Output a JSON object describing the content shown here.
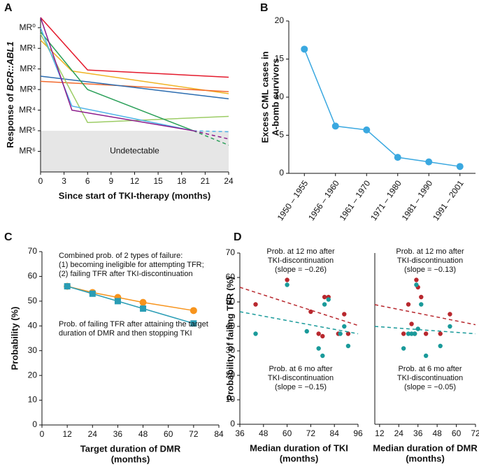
{
  "panel_labels": [
    "A",
    "B",
    "C",
    "D"
  ],
  "chart_data": [
    {
      "type": "line",
      "x_label": [
        "Since start of TKI-therapy (months)"
      ],
      "y_label_parts": [
        {
          "text": "Response of ",
          "italic": false
        },
        {
          "text": "BCR::ABL1",
          "italic": true
        }
      ],
      "xlim": [
        0,
        24
      ],
      "xticks": [
        0,
        3,
        6,
        9,
        12,
        15,
        18,
        21,
        24
      ],
      "ylim": [
        7.0,
        -0.5
      ],
      "yticks": [
        {
          "value": 0,
          "label": "MR⁰"
        },
        {
          "value": 1,
          "label": "MR¹"
        },
        {
          "value": 2,
          "label": "MR²"
        },
        {
          "value": 3,
          "label": "MR³"
        },
        {
          "value": 4,
          "label": "MR⁴"
        },
        {
          "value": 5,
          "label": "MR⁵"
        },
        {
          "value": 6,
          "label": "MR⁶"
        }
      ],
      "shade": {
        "from": 5,
        "label": "Undetectable",
        "color": "#e6e6e6"
      },
      "series": [
        {
          "color": "#e41a2c",
          "x": [
            0,
            6,
            24
          ],
          "values": [
            -0.5,
            2.05,
            2.4
          ]
        },
        {
          "color": "#f0b323",
          "x": [
            0,
            4,
            24
          ],
          "values": [
            0.6,
            2.1,
            3.2
          ]
        },
        {
          "color": "#f26a2e",
          "x": [
            0,
            24
          ],
          "values": [
            2.6,
            3.1
          ]
        },
        {
          "color": "#2b6cb0",
          "x": [
            0,
            24
          ],
          "values": [
            2.35,
            3.45
          ]
        },
        {
          "color": "#9ccc65",
          "x": [
            0,
            6,
            24
          ],
          "values": [
            0.3,
            4.6,
            4.3
          ]
        },
        {
          "color": "#2ca05a",
          "x": [
            0,
            6,
            19.5
          ],
          "values": [
            0.2,
            3.0,
            5.0
          ]
        },
        {
          "color": "#2ca05a",
          "dashed": true,
          "x": [
            19.5,
            24
          ],
          "values": [
            5.0,
            5.7
          ]
        },
        {
          "color": "#4fb3e8",
          "x": [
            0,
            4,
            19.5
          ],
          "values": [
            0,
            3.8,
            5.0
          ]
        },
        {
          "color": "#4fb3e8",
          "dashed": true,
          "x": [
            19.5,
            24
          ],
          "values": [
            5.0,
            5.05
          ]
        },
        {
          "color": "#8b1a8b",
          "x": [
            0,
            4,
            19.5
          ],
          "values": [
            -0.5,
            4.0,
            5.0
          ]
        },
        {
          "color": "#8b1a8b",
          "dashed": true,
          "x": [
            19.5,
            24
          ],
          "values": [
            5.0,
            5.4
          ]
        }
      ]
    },
    {
      "type": "line",
      "categories": [
        "1950 – 1955",
        "1956 – 1960",
        "1961 – 1970",
        "1971 – 1980",
        "1981 – 1990",
        "1991 – 2001"
      ],
      "values": [
        16.3,
        6.2,
        5.7,
        2.1,
        1.5,
        0.9
      ],
      "color": "#3aa8e0",
      "marker": "circle",
      "ylim": [
        0,
        20
      ],
      "yticks": [
        0,
        5,
        10,
        15,
        20
      ],
      "y_label": [
        "Excess CML cases in",
        "A-bomb survivors"
      ],
      "x_rotate": true
    },
    {
      "type": "line",
      "x_label": [
        "Target duration of DMR",
        "(months)"
      ],
      "y_label": [
        "Probability (%)"
      ],
      "xlim": [
        0,
        84
      ],
      "xticks": [
        0,
        12,
        24,
        36,
        48,
        60,
        72,
        84
      ],
      "ylim": [
        0,
        70
      ],
      "yticks": [
        0,
        10,
        20,
        30,
        40,
        50,
        60,
        70
      ],
      "series": [
        {
          "color": "#f7941d",
          "marker": "circle",
          "x": [
            12,
            24,
            36,
            48,
            72
          ],
          "values": [
            56,
            53.5,
            51.5,
            49.5,
            46.2
          ]
        },
        {
          "color": "#2a9db5",
          "marker": "square",
          "x": [
            12,
            24,
            36,
            48,
            72
          ],
          "values": [
            56,
            53,
            50,
            47,
            41
          ]
        }
      ],
      "annotations": [
        {
          "color": "#f7941d",
          "lines": [
            "Combined prob. of 2 types of failure:",
            "(1) becoming ineligible for attempting TFR;",
            "(2) failing TFR after TKI-discontinuation"
          ]
        },
        {
          "color": "#2a9db5",
          "lines": [
            "Prob. of failing TFR after attaining the target",
            "duration of DMR and then stopping TKI"
          ]
        }
      ]
    },
    {
      "type": "scatter",
      "x_label": [
        "Median duration of TKI",
        "(months)"
      ],
      "y_label": [
        "Probability of failing TFR (%)"
      ],
      "xlim": [
        36,
        96
      ],
      "xticks": [
        36,
        48,
        60,
        72,
        84,
        96
      ],
      "ylim": [
        0,
        70
      ],
      "yticks": [
        0,
        10,
        20,
        30,
        40,
        50,
        60,
        70
      ],
      "series": [
        {
          "color": "#b8282e",
          "x": [
            44,
            60,
            72,
            76,
            78,
            79,
            81,
            86,
            89,
            91
          ],
          "values": [
            49,
            59,
            46,
            37,
            36,
            52,
            52,
            37,
            45,
            37
          ],
          "trend": {
            "x": [
              36,
              96
            ],
            "values": [
              56,
              40.4
            ]
          }
        },
        {
          "color": "#1a9a9a",
          "x": [
            44,
            60,
            70,
            76,
            78,
            79,
            81,
            87,
            89,
            91
          ],
          "values": [
            37,
            57,
            38,
            31,
            28,
            49,
            51,
            37,
            40,
            32
          ],
          "trend": {
            "x": [
              36,
              96
            ],
            "values": [
              46,
              37
            ]
          }
        }
      ],
      "annotations": [
        {
          "color": "#b8282e",
          "lines": [
            "Prob. at 12 mo after",
            "TKI-discontinuation",
            "(slope = −0.26)"
          ]
        },
        {
          "color": "#1a9a9a",
          "lines": [
            "Prob. at 6 mo after",
            "TKI-discontinuation",
            "(slope = −0.15)"
          ]
        }
      ]
    },
    {
      "type": "scatter",
      "x_label": [
        "Median duration of DMR",
        "(months)"
      ],
      "xlim": [
        9,
        72
      ],
      "xticks": [
        12,
        24,
        36,
        48,
        60,
        72
      ],
      "ylim": [
        0,
        70
      ],
      "series": [
        {
          "color": "#b8282e",
          "x": [
            27,
            30,
            32,
            34,
            35,
            36,
            38,
            41,
            50,
            56
          ],
          "values": [
            37,
            49,
            41,
            37,
            59,
            56,
            52,
            37,
            37,
            45
          ],
          "trend": {
            "x": [
              9,
              72
            ],
            "values": [
              48.9,
              40.7
            ]
          }
        },
        {
          "color": "#1a9a9a",
          "x": [
            27,
            30,
            32,
            34,
            35,
            36,
            38,
            41,
            50,
            56
          ],
          "values": [
            31,
            37,
            37,
            37,
            57,
            39,
            49,
            28,
            32,
            40
          ],
          "trend": {
            "x": [
              9,
              72
            ],
            "values": [
              40,
              37
            ]
          }
        }
      ],
      "annotations": [
        {
          "color": "#b8282e",
          "lines": [
            "Prob. at 12 mo after",
            "TKI-discontinuation",
            "(slope = −0.13)"
          ]
        },
        {
          "color": "#1a9a9a",
          "lines": [
            "Prob. at 6 mo after",
            "TKI-discontinuation",
            "(slope = −0.05)"
          ]
        }
      ]
    }
  ]
}
